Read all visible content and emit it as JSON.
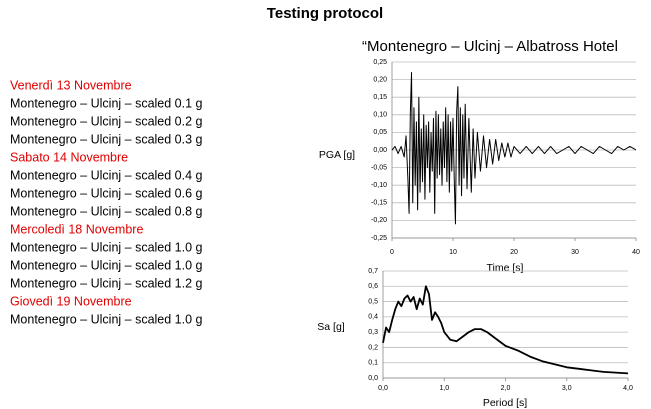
{
  "title": "Testing protocol",
  "schedule": [
    {
      "date": "Venerdì 13 Novembre",
      "items": [
        "Montenegro – Ulcinj – scaled 0.1 g",
        "Montenegro – Ulcinj – scaled 0.2 g",
        "Montenegro – Ulcinj – scaled 0.3 g"
      ]
    },
    {
      "date": "Sabato 14 Novembre",
      "items": [
        "Montenegro – Ulcinj – scaled 0.4 g",
        "Montenegro – Ulcinj – scaled 0.6 g",
        "Montenegro – Ulcinj – scaled 0.8 g"
      ]
    },
    {
      "date": "Mercoledì 18 Novembre",
      "items": [
        "Montenegro – Ulcinj – scaled 1.0 g",
        "Montenegro – Ulcinj – scaled 1.0 g",
        "Montenegro – Ulcinj – scaled 1.2 g"
      ]
    },
    {
      "date": "Giovedì 19 Novembre",
      "items": [
        "Montenegro – Ulcinj – scaled 1.0 g"
      ]
    }
  ],
  "chart_data": [
    {
      "type": "line",
      "title": "“Montenegro – Ulcinj – Albatross Hotel",
      "xlabel": "Time [s]",
      "ylabel": "PGA [g]",
      "color": "#000000",
      "grid": true,
      "xlim": [
        0,
        40
      ],
      "xticks": [
        0,
        10,
        20,
        30,
        40
      ],
      "ylim": [
        -0.25,
        0.25
      ],
      "yticks": [
        {
          "value": -0.25,
          "label": "-0,25"
        },
        {
          "value": -0.2,
          "label": "-0,20"
        },
        {
          "value": -0.15,
          "label": "-0,15"
        },
        {
          "value": -0.1,
          "label": "-0,10"
        },
        {
          "value": -0.05,
          "label": "-0,05"
        },
        {
          "value": 0,
          "label": "0,00"
        },
        {
          "value": 0.05,
          "label": "0,05"
        },
        {
          "value": 0.1,
          "label": "0,10"
        },
        {
          "value": 0.15,
          "label": "0,15"
        },
        {
          "value": 0.2,
          "label": "0,20"
        },
        {
          "value": 0.25,
          "label": "0,25"
        }
      ],
      "x": [
        0,
        0.5,
        1,
        1.5,
        2,
        2.3,
        2.6,
        2.8,
        3.0,
        3.2,
        3.4,
        3.6,
        3.8,
        4.0,
        4.2,
        4.4,
        4.6,
        4.8,
        5.0,
        5.2,
        5.4,
        5.6,
        5.8,
        6.0,
        6.2,
        6.4,
        6.6,
        6.8,
        7.0,
        7.2,
        7.4,
        7.6,
        7.8,
        8.0,
        8.2,
        8.4,
        8.6,
        8.8,
        9.0,
        9.2,
        9.4,
        9.6,
        9.8,
        10.0,
        10.2,
        10.4,
        10.6,
        10.8,
        11.0,
        11.2,
        11.4,
        11.6,
        11.8,
        12.0,
        12.3,
        12.6,
        13.0,
        13.3,
        13.6,
        14.0,
        14.5,
        15,
        15.5,
        16,
        16.5,
        17,
        17.5,
        18,
        18.5,
        19,
        19.5,
        20,
        21,
        22,
        23,
        24,
        25,
        26,
        27,
        28,
        29,
        30,
        31,
        32,
        33,
        34,
        35,
        36,
        37,
        38,
        39,
        40
      ],
      "values": [
        0.0,
        0.01,
        -0.01,
        0.01,
        -0.02,
        0.04,
        -0.08,
        -0.18,
        0.1,
        0.22,
        -0.15,
        0.12,
        -0.1,
        0.08,
        -0.17,
        0.15,
        -0.12,
        0.06,
        -0.09,
        0.1,
        -0.14,
        0.07,
        -0.05,
        0.08,
        -0.12,
        0.05,
        -0.06,
        0.09,
        -0.18,
        0.11,
        -0.08,
        0.1,
        -0.07,
        0.06,
        -0.1,
        0.08,
        -0.05,
        0.12,
        -0.09,
        0.1,
        -0.12,
        0.08,
        -0.06,
        0.09,
        -0.08,
        -0.21,
        0.11,
        0.18,
        -0.1,
        0.12,
        -0.13,
        0.1,
        -0.08,
        0.13,
        -0.11,
        0.09,
        -0.12,
        0.06,
        -0.08,
        0.05,
        -0.06,
        0.04,
        -0.05,
        0.03,
        -0.04,
        0.03,
        -0.03,
        0.02,
        -0.02,
        0.02,
        -0.02,
        0.01,
        -0.01,
        0.01,
        -0.01,
        0.01,
        -0.01,
        0.01,
        -0.01,
        0.0,
        0.01,
        -0.01,
        0.01,
        0.0,
        -0.01,
        0.01,
        0.0,
        -0.01,
        0.01,
        0.0,
        0.01,
        0.0
      ]
    },
    {
      "type": "line",
      "xlabel": "Period [s]",
      "ylabel": "Sa [g]",
      "color": "#000000",
      "grid": true,
      "xlim": [
        0,
        4
      ],
      "xticks": [
        {
          "value": 0,
          "label": "0,0"
        },
        {
          "value": 1,
          "label": "1,0"
        },
        {
          "value": 2,
          "label": "2,0"
        },
        {
          "value": 3,
          "label": "3,0"
        },
        {
          "value": 4,
          "label": "4,0"
        }
      ],
      "ylim": [
        0,
        0.7
      ],
      "yticks": [
        {
          "value": 0,
          "label": "0,0"
        },
        {
          "value": 0.1,
          "label": "0,1"
        },
        {
          "value": 0.2,
          "label": "0,2"
        },
        {
          "value": 0.3,
          "label": "0,3"
        },
        {
          "value": 0.4,
          "label": "0,4"
        },
        {
          "value": 0.5,
          "label": "0,5"
        },
        {
          "value": 0.6,
          "label": "0,6"
        },
        {
          "value": 0.7,
          "label": "0,7"
        }
      ],
      "x": [
        0,
        0.05,
        0.1,
        0.15,
        0.2,
        0.25,
        0.3,
        0.35,
        0.4,
        0.45,
        0.5,
        0.55,
        0.6,
        0.65,
        0.7,
        0.75,
        0.8,
        0.85,
        0.9,
        0.95,
        1.0,
        1.1,
        1.2,
        1.3,
        1.4,
        1.5,
        1.6,
        1.7,
        1.8,
        2.0,
        2.2,
        2.4,
        2.6,
        2.8,
        3.0,
        3.2,
        3.4,
        3.6,
        3.8,
        4.0
      ],
      "values": [
        0.23,
        0.33,
        0.3,
        0.38,
        0.45,
        0.5,
        0.47,
        0.52,
        0.54,
        0.5,
        0.53,
        0.45,
        0.52,
        0.48,
        0.6,
        0.55,
        0.38,
        0.43,
        0.4,
        0.36,
        0.3,
        0.25,
        0.24,
        0.27,
        0.3,
        0.32,
        0.32,
        0.3,
        0.27,
        0.21,
        0.18,
        0.14,
        0.11,
        0.09,
        0.07,
        0.06,
        0.05,
        0.04,
        0.035,
        0.03
      ]
    }
  ]
}
